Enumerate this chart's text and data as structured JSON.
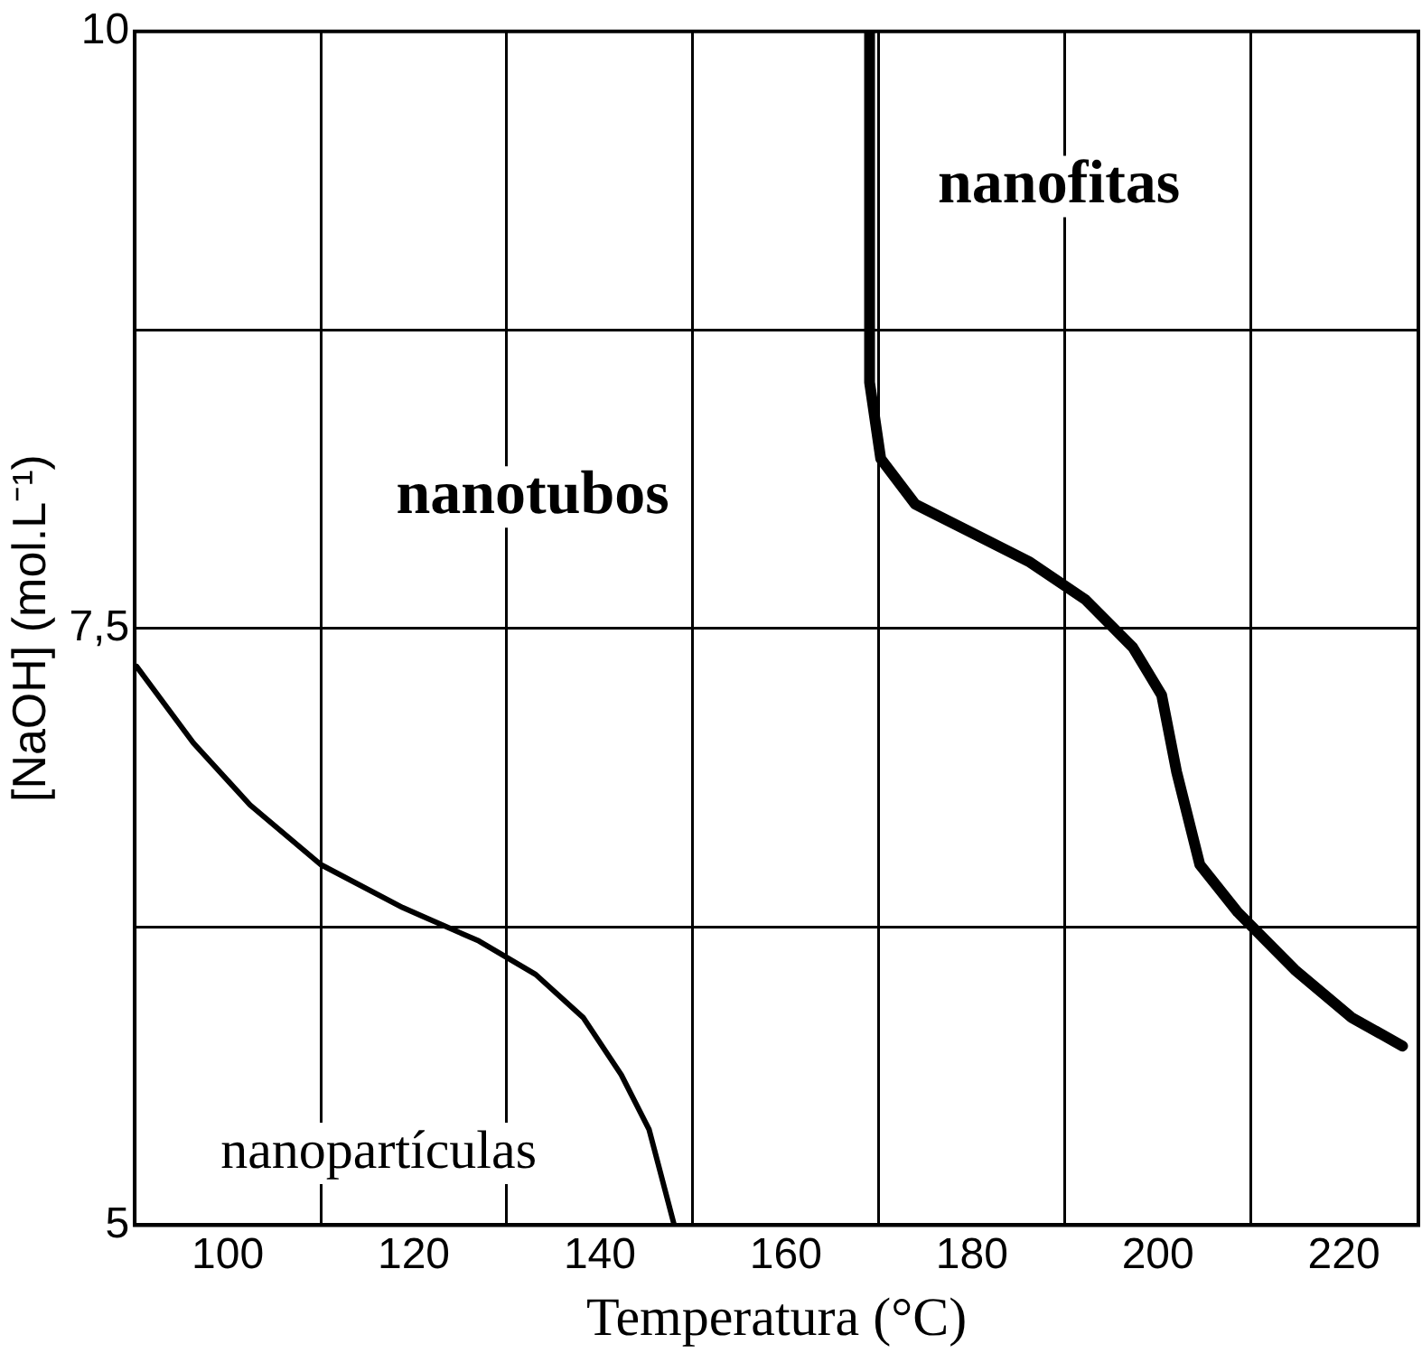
{
  "chart_data": {
    "type": "line",
    "xlabel": "Temperatura (°C)",
    "ylabel": "[NaOH] (mol.L⁻¹)",
    "xlim": [
      90,
      228
    ],
    "ylim": [
      5,
      10
    ],
    "xticks": [
      100,
      {
        "value": 110,
        "label": null
      },
      120,
      {
        "value": 130,
        "label": null
      },
      140,
      {
        "value": 150,
        "label": null
      },
      160,
      {
        "value": 170,
        "label": null
      },
      180,
      {
        "value": 190,
        "label": null
      },
      200,
      {
        "value": 210,
        "label": null
      },
      220
    ],
    "yticks": [
      5,
      {
        "value": 6.25,
        "label": null
      },
      {
        "value": 7.5,
        "label": "7,5"
      },
      {
        "value": 8.75,
        "label": null
      },
      10
    ],
    "grid": true,
    "legend": false,
    "marker": "none",
    "line_style": "solid",
    "series": [
      {
        "color": "#000000",
        "x": [
          90.2,
          96.3,
          102.4,
          110,
          118.8,
          127,
          133.1,
          138.2,
          142.3,
          145.3,
          148
        ],
        "values": [
          7.34,
          7.02,
          6.76,
          6.51,
          6.33,
          6.19,
          6.05,
          5.87,
          5.63,
          5.4,
          5.0
        ]
      },
      {
        "color": "#000000",
        "x": [
          169,
          169,
          170.2,
          173.9,
          180,
          186.1,
          192.2,
          197.3,
          200.4,
          202,
          204.5,
          208.6,
          214.7,
          220.8,
          226.3
        ],
        "values": [
          10,
          8.53,
          8.21,
          8.02,
          7.9,
          7.78,
          7.62,
          7.42,
          7.22,
          6.9,
          6.51,
          6.31,
          6.07,
          5.87,
          5.75
        ]
      }
    ],
    "annotations": [
      "nanofitas",
      "nanotubos",
      "nanopartículas"
    ]
  }
}
